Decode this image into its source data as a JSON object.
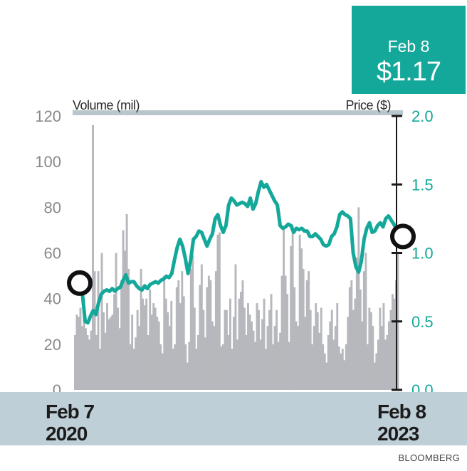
{
  "callout": {
    "date": "Feb 8",
    "price": "$1.17"
  },
  "chart_data": {
    "type": "bar+line",
    "left_axis": {
      "label": "Volume (mil)",
      "ylim": [
        0,
        120
      ],
      "ticks": [
        "0",
        "20",
        "40",
        "60",
        "80",
        "100",
        "120"
      ]
    },
    "right_axis": {
      "label": "Price ($)",
      "ylim": [
        0,
        2.0
      ],
      "ticks": [
        "0.0",
        "0.5",
        "1.0",
        "1.5",
        "2.0"
      ]
    },
    "x_labels": {
      "start": [
        "Feb 7",
        "2020"
      ],
      "end": [
        "Feb 8",
        "2023"
      ]
    },
    "volume": [
      24,
      33,
      32,
      36,
      28,
      40,
      27,
      24,
      22,
      26,
      116,
      52,
      24,
      52,
      18,
      60,
      34,
      25,
      38,
      31,
      32,
      33,
      42,
      60,
      36,
      27,
      48,
      70,
      61,
      77,
      53,
      20,
      33,
      18,
      23,
      35,
      28,
      53,
      40,
      37,
      40,
      24,
      44,
      33,
      38,
      36,
      32,
      30,
      20,
      16,
      50,
      40,
      34,
      28,
      39,
      18,
      20,
      45,
      48,
      38,
      52,
      41,
      20,
      12,
      21,
      53,
      59,
      36,
      18,
      24,
      46,
      55,
      35,
      23,
      45,
      50,
      48,
      30,
      28,
      52,
      68,
      69,
      19,
      20,
      35,
      35,
      24,
      40,
      18,
      32,
      55,
      22,
      40,
      43,
      48,
      36,
      24,
      38,
      33,
      30,
      26,
      21,
      38,
      35,
      22,
      31,
      40,
      18,
      28,
      35,
      42,
      20,
      28,
      35,
      21,
      25,
      50,
      71,
      50,
      42,
      21,
      63,
      72,
      45,
      30,
      28,
      68,
      62,
      53,
      32,
      48,
      52,
      35,
      20,
      28,
      38,
      34,
      25,
      36,
      20,
      16,
      12,
      24,
      30,
      35,
      22,
      28,
      38,
      19,
      16,
      18,
      13,
      20,
      32,
      45,
      48,
      35,
      40,
      58,
      80,
      44,
      30,
      52,
      60,
      20,
      36,
      34,
      28,
      12,
      16,
      22,
      36,
      28,
      38,
      22,
      24,
      30,
      35,
      42,
      40,
      48,
      60
    ],
    "price": [
      0.78,
      0.7,
      0.5,
      0.49,
      0.54,
      0.58,
      0.55,
      0.64,
      0.7,
      0.72,
      0.73,
      0.72,
      0.74,
      0.72,
      0.74,
      0.75,
      0.8,
      0.84,
      0.78,
      0.79,
      0.79,
      0.76,
      0.74,
      0.73,
      0.76,
      0.74,
      0.77,
      0.78,
      0.79,
      0.78,
      0.8,
      0.81,
      0.83,
      0.82,
      0.85,
      0.95,
      1.04,
      1.1,
      1.05,
      0.96,
      0.85,
      0.95,
      1.1,
      1.12,
      1.16,
      1.15,
      1.1,
      1.05,
      1.1,
      1.14,
      1.25,
      1.28,
      1.2,
      1.15,
      1.2,
      1.35,
      1.4,
      1.38,
      1.35,
      1.36,
      1.37,
      1.36,
      1.34,
      1.4,
      1.32,
      1.36,
      1.45,
      1.52,
      1.48,
      1.5,
      1.46,
      1.42,
      1.38,
      1.35,
      1.2,
      1.18,
      1.19,
      1.21,
      1.2,
      1.15,
      1.18,
      1.17,
      1.18,
      1.16,
      1.16,
      1.12,
      1.12,
      1.14,
      1.12,
      1.1,
      1.06,
      1.05,
      1.06,
      1.12,
      1.14,
      1.19,
      1.28,
      1.3,
      1.28,
      1.27,
      1.25,
      1.0,
      0.9,
      0.86,
      0.94,
      1.1,
      1.18,
      1.22,
      1.15,
      1.16,
      1.2,
      1.22,
      1.19,
      1.25,
      1.27,
      1.24,
      1.21,
      1.17
    ],
    "markers": [
      "start",
      "end"
    ]
  },
  "source": "BLOOMBERG",
  "colors": {
    "price_line": "#14a89a",
    "volume_bar": "#b6b8bd",
    "band": "#bfcfd8",
    "top_rule": "#b9c6cc",
    "right_axis_text": "#14a89a",
    "left_axis_text": "#8a8a8a"
  }
}
